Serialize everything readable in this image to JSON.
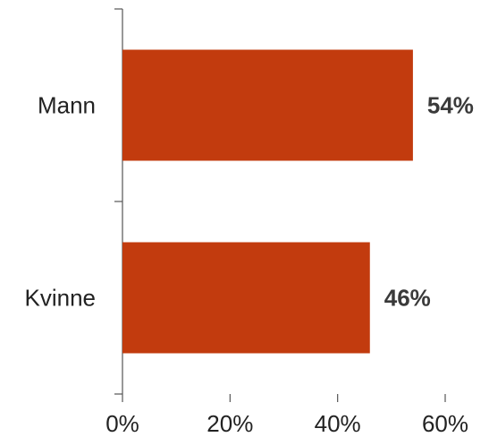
{
  "chart_data": {
    "type": "bar",
    "orientation": "horizontal",
    "categories": [
      "Mann",
      "Kvinne"
    ],
    "values": [
      54,
      46
    ],
    "data_labels": [
      "54%",
      "46%"
    ],
    "x_ticks": [
      "0%",
      "20%",
      "40%",
      "60%"
    ],
    "xlim": [
      0,
      60
    ],
    "title": "",
    "xlabel": "",
    "ylabel": "",
    "grid": false,
    "legend": "none",
    "bar_color": "#C23B0E"
  }
}
